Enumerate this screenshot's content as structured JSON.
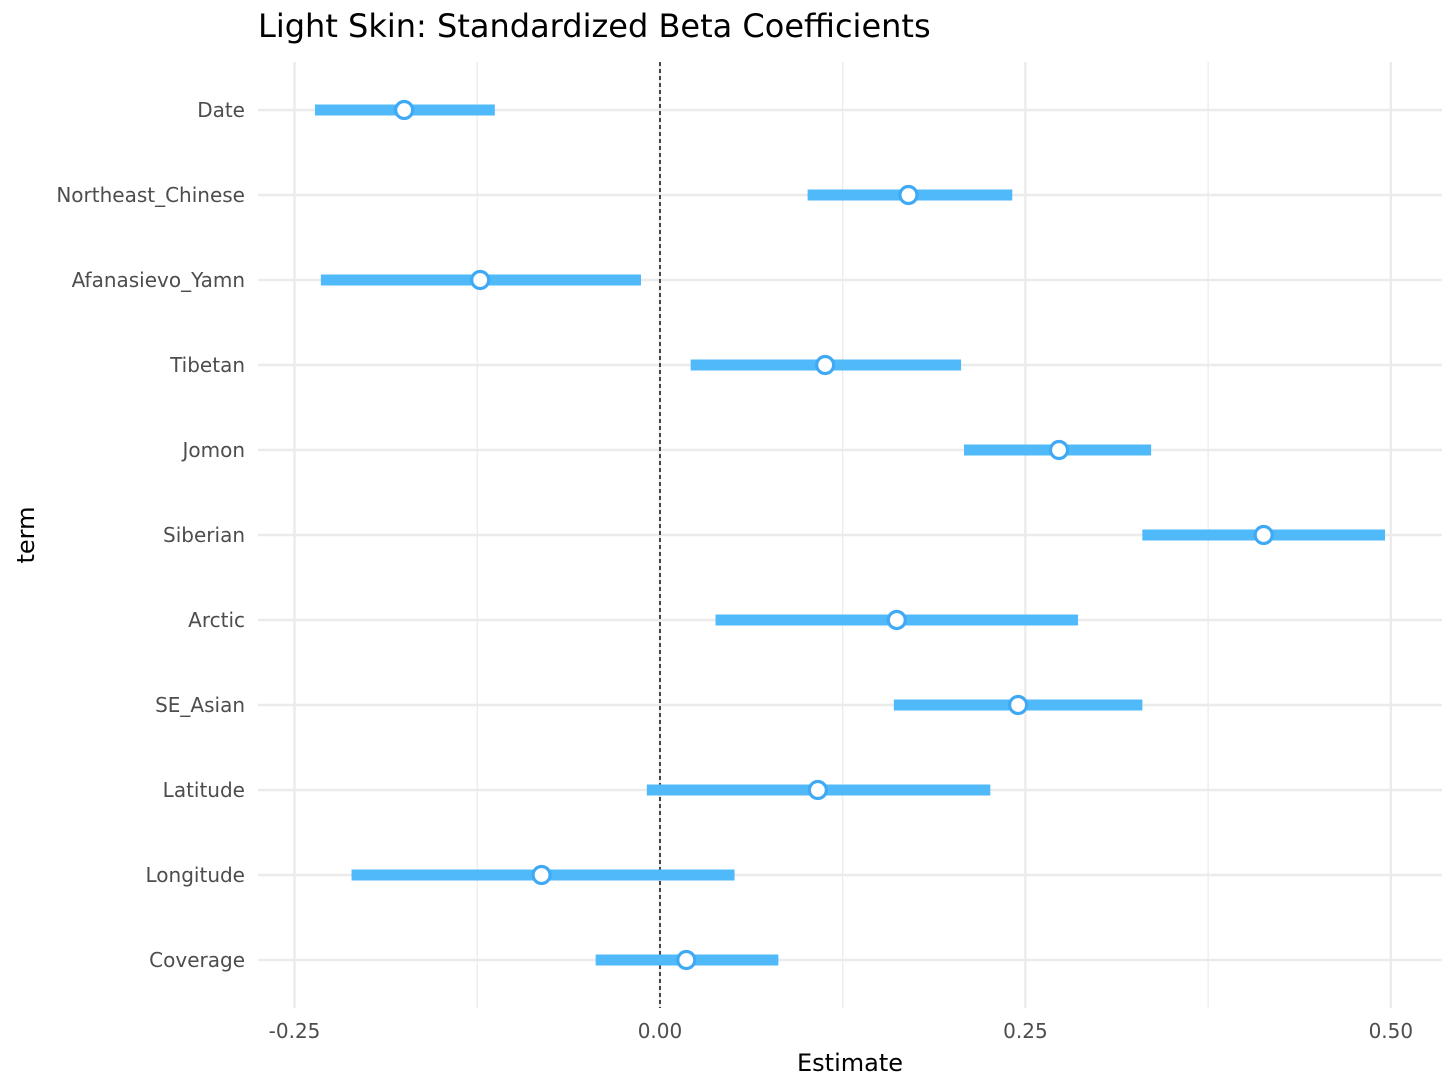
{
  "chart_data": {
    "type": "scatter",
    "title": "Light Skin: Standardized Beta Coefficients",
    "xlabel": "Estimate",
    "ylabel": "term",
    "xlim": [
      -0.275,
      0.535
    ],
    "x_ticks": [
      -0.25,
      0.0,
      0.25,
      0.5
    ],
    "x_tick_labels": [
      "-0.25",
      "0.00",
      "0.25",
      "0.50"
    ],
    "reference_line": 0.0,
    "grid": true,
    "terms": [
      "Date",
      "Northeast_Chinese",
      "Afanasievo_Yamn",
      "Tibetan",
      "Jomon",
      "Siberian",
      "Arctic",
      "SE_Asian",
      "Latitude",
      "Longitude",
      "Coverage"
    ],
    "series": [
      {
        "estimate": [
          -0.175,
          0.17,
          -0.123,
          0.113,
          0.273,
          0.413,
          0.162,
          0.245,
          0.108,
          -0.081,
          0.018
        ],
        "ci_low": [
          -0.236,
          0.101,
          -0.232,
          0.021,
          0.208,
          0.33,
          0.038,
          0.16,
          -0.009,
          -0.211,
          -0.044
        ],
        "ci_high": [
          -0.113,
          0.241,
          -0.013,
          0.206,
          0.336,
          0.496,
          0.286,
          0.33,
          0.226,
          0.051,
          0.081
        ]
      }
    ],
    "colors": {
      "interval": "#4fb9f9",
      "point_fill": "#ffffff",
      "point_stroke": "#3fa9f5",
      "grid": "#ebebeb",
      "reference": "#000000"
    }
  }
}
